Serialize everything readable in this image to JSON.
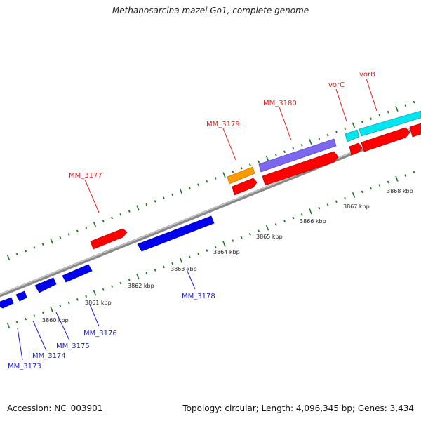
{
  "title": "Methanosarcina mazei Go1, complete genome",
  "footer": {
    "accession": "Accession: NC_003901",
    "summary": "Topology: circular; Length: 4,096,345 bp; Genes: 3,434"
  },
  "colors": {
    "forward_gene": "#ff0000",
    "reverse_gene": "#0000ee",
    "orange_gene": "#ff9900",
    "purple_gene": "#7b68ee",
    "cyan_gene": "#00e5ee",
    "forward_label": "#e41a1c",
    "reverse_label": "#1f1fd0",
    "tick": "#1a7a1a",
    "backbone": "#888888"
  },
  "scale_labels": [
    "3860 kbp",
    "3861 kbp",
    "3862 kbp",
    "3863 kbp",
    "3864 kbp",
    "3865 kbp",
    "3866 kbp",
    "3867 kbp",
    "3868 kbp"
  ],
  "gene_labels": {
    "forward": [
      "MM_3177",
      "MM_3179",
      "MM_3180",
      "vorC",
      "vorB"
    ],
    "reverse": [
      "MM_3173",
      "MM_3174",
      "MM_3175",
      "MM_3176",
      "MM_3178"
    ]
  }
}
